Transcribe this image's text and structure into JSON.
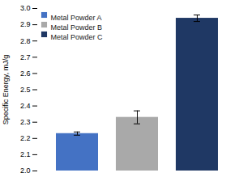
{
  "chart_data": {
    "type": "bar",
    "categories": [
      "Metal Powder A",
      "Metal Powder B",
      "Metal Powder C"
    ],
    "values": [
      2.23,
      2.33,
      2.94
    ],
    "errors": [
      0.01,
      0.04,
      0.02
    ],
    "colors": [
      "#4472C4",
      "#A9A9A9",
      "#1F3864"
    ],
    "ylabel": "Specific Energy, mJ/g",
    "ylim": [
      2.0,
      3.0
    ],
    "yticks": [
      {
        "value": 2.0,
        "label": "2.0"
      },
      2.1,
      2.2,
      2.3,
      2.4,
      2.5,
      2.6,
      2.7,
      2.8,
      2.9,
      {
        "value": 3.0,
        "label": "3.0"
      }
    ],
    "grid": false,
    "legend": "upper left",
    "tick_labels": "y"
  }
}
